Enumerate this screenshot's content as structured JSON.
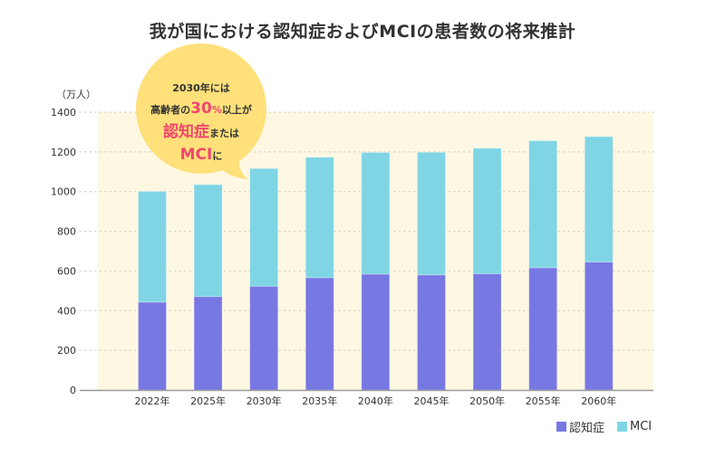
{
  "chart_data": {
    "type": "bar",
    "stacked": true,
    "title": "我が国における認知症およびMCIの患者数の将来推計",
    "ylabel": "（万人）",
    "xlabel": "",
    "ylim": [
      0,
      1400
    ],
    "yticks": [
      0,
      200,
      400,
      600,
      800,
      1000,
      1200,
      1400
    ],
    "grid": true,
    "categories": [
      "2022年",
      "2025年",
      "2030年",
      "2035年",
      "2040年",
      "2045年",
      "2050年",
      "2055年",
      "2060年"
    ],
    "series": [
      {
        "name": "認知症",
        "color": "#7878e3",
        "values": [
          443,
          471,
          523,
          566,
          584,
          580,
          586,
          616,
          645
        ]
      },
      {
        "name": "MCI",
        "color": "#7fd5e4",
        "values": [
          558,
          564,
          593,
          607,
          613,
          618,
          632,
          640,
          632
        ]
      }
    ],
    "legend_position": "bottom-right",
    "annotation": {
      "lines": [
        [
          {
            "text": "2030年には",
            "style": "normal"
          }
        ],
        [
          {
            "text": "高齢者の",
            "style": "normal"
          },
          {
            "text": "30",
            "style": "accent-big"
          },
          {
            "text": "%",
            "style": "accent"
          },
          {
            "text": "以上が",
            "style": "normal"
          }
        ],
        [
          {
            "text": "認知症",
            "style": "accent-big"
          },
          {
            "text": "または",
            "style": "normal"
          }
        ],
        [
          {
            "text": "MCI",
            "style": "accent-big"
          },
          {
            "text": "に",
            "style": "normal"
          }
        ]
      ],
      "bubble_color": "#ffe07a",
      "accent_color": "#f0466e"
    },
    "colors": {
      "plot_background": "#fef8e3",
      "gridline": "#d8d4c8",
      "axis": "#999999"
    }
  }
}
